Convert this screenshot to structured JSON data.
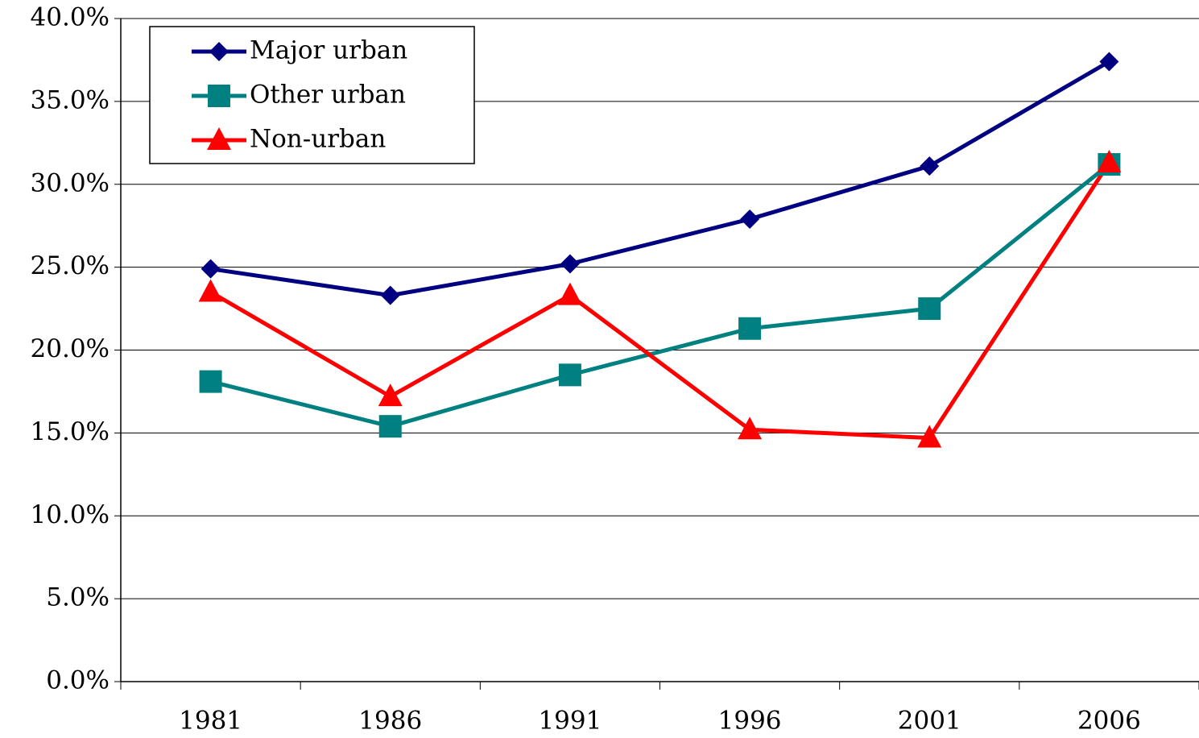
{
  "chart_data": {
    "type": "line",
    "categories": [
      "1981",
      "1986",
      "1991",
      "1996",
      "2001",
      "2006"
    ],
    "series": [
      {
        "name": "Major urban",
        "color": "#000080",
        "marker": "diamond",
        "values": [
          24.9,
          23.3,
          25.2,
          27.9,
          31.1,
          37.4
        ]
      },
      {
        "name": "Other urban",
        "color": "#008080",
        "marker": "square",
        "values": [
          18.1,
          15.4,
          18.5,
          21.3,
          22.5,
          31.2
        ]
      },
      {
        "name": "Non-urban",
        "color": "#ff0000",
        "marker": "triangle",
        "values": [
          23.5,
          17.2,
          23.3,
          15.2,
          14.7,
          31.3
        ]
      }
    ],
    "ylim": [
      0,
      40
    ],
    "yticks": [
      {
        "value": 0,
        "label": "0.0%"
      },
      {
        "value": 5,
        "label": "5.0%"
      },
      {
        "value": 10,
        "label": "10.0%"
      },
      {
        "value": 15,
        "label": "15.0%"
      },
      {
        "value": 20,
        "label": "20.0%"
      },
      {
        "value": 25,
        "label": "25.0%"
      },
      {
        "value": 30,
        "label": "30.0%"
      },
      {
        "value": 35,
        "label": "35.0%"
      },
      {
        "value": 40,
        "label": "40.0%"
      }
    ],
    "grid": true,
    "legend": "upper-left"
  }
}
